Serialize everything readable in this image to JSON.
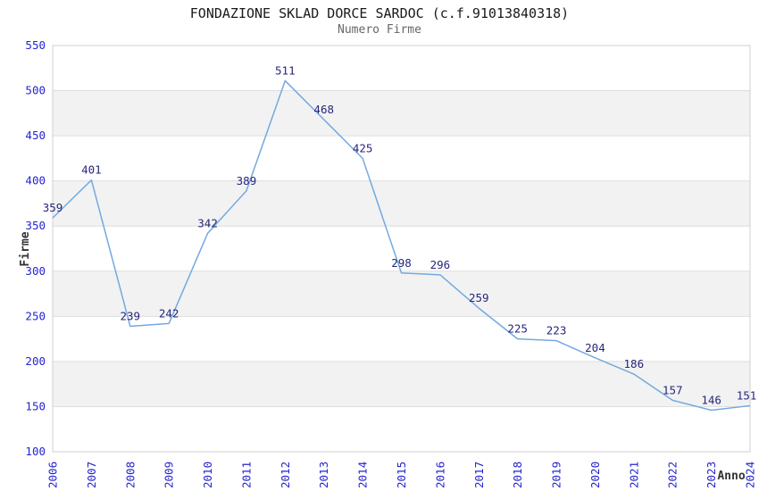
{
  "chart_data": {
    "type": "line",
    "title": "FONDAZIONE SKLAD DORCE SARDOC (c.f.91013840318)",
    "subtitle": "Numero Firme",
    "xlabel": "Anno",
    "ylabel": "Firme",
    "categories": [
      "2006",
      "2007",
      "2008",
      "2009",
      "2010",
      "2011",
      "2012",
      "2013",
      "2014",
      "2015",
      "2016",
      "2017",
      "2018",
      "2019",
      "2020",
      "2021",
      "2022",
      "2023",
      "2024"
    ],
    "values": [
      359,
      401,
      239,
      242,
      342,
      389,
      511,
      468,
      425,
      298,
      296,
      259,
      225,
      223,
      204,
      186,
      157,
      146,
      151
    ],
    "ylim": [
      100,
      550
    ],
    "ytick_step": 50,
    "yticks": [
      100,
      150,
      200,
      250,
      300,
      350,
      400,
      450,
      500,
      550
    ],
    "band_starts": [
      150,
      250,
      350,
      450
    ],
    "grid": true,
    "legend": "none",
    "colors": {
      "line": "#74a9e0",
      "data_label": "#26267d",
      "tick_label": "#2424cf",
      "grid_line": "#dedede",
      "band_fill": "#f2f2f2",
      "plot_border": "#d0d0d0",
      "title": "#1a1a1a",
      "subtitle": "#666666",
      "axis_title": "#333333"
    }
  }
}
